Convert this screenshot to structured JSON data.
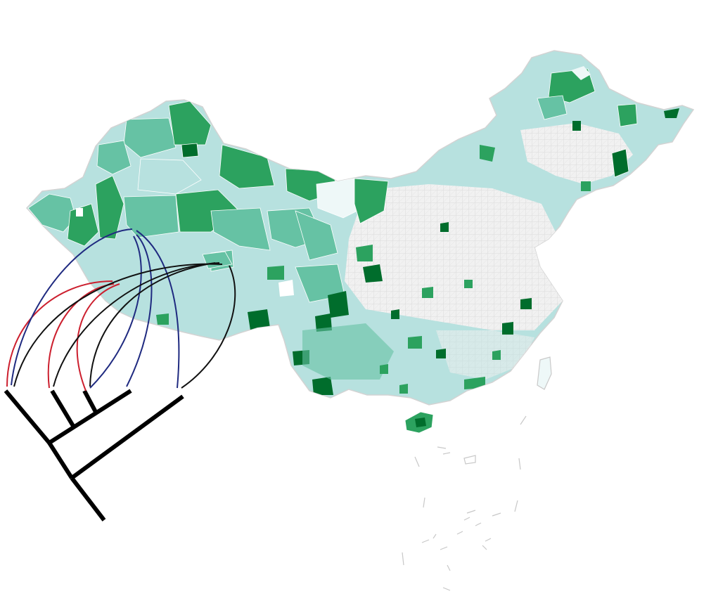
{
  "map": {
    "palette": {
      "lightest": "#eef8f8",
      "light": "#b7e1df",
      "medium": "#66c2a4",
      "strong": "#2ca25f",
      "darkest": "#006d2c",
      "borders": "#d3d3d3",
      "county_grid": "#ffffff"
    }
  },
  "phylogeny": {
    "branch_color": "#000000",
    "link_colors": {
      "red": "#cc1f2e",
      "blue": "#1f2a80",
      "black": "#111111"
    },
    "tips": 6
  }
}
